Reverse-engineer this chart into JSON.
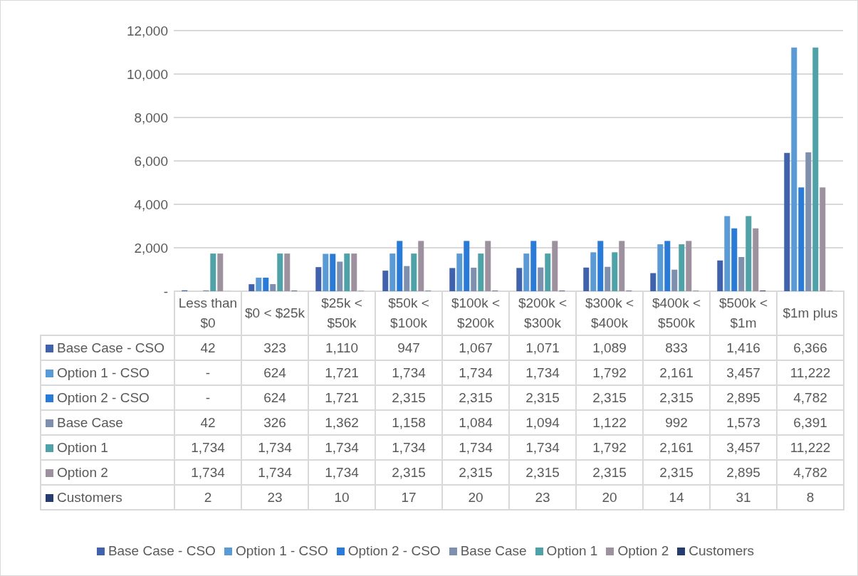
{
  "chart_data": {
    "type": "bar",
    "categories": [
      "Less than $0",
      "$0 < $25k",
      "$25k < $50k",
      "$50k < $100k",
      "$100k < $200k",
      "$200k < $300k",
      "$300k < $400k",
      "$400k < $500k",
      "$500k < $1m",
      "$1m plus"
    ],
    "series": [
      {
        "name": "Base Case - CSO",
        "color": "#4062ad",
        "values": [
          42,
          323,
          1110,
          947,
          1067,
          1071,
          1089,
          833,
          1416,
          6366
        ],
        "value_labels": [
          "42",
          "323",
          "1,110",
          "947",
          "1,067",
          "1,071",
          "1,089",
          "833",
          "1,416",
          "6,366"
        ]
      },
      {
        "name": "Option 1 - CSO",
        "color": "#5b9bd5",
        "values": [
          null,
          624,
          1721,
          1734,
          1734,
          1734,
          1792,
          2161,
          3457,
          11222
        ],
        "value_labels": [
          "-",
          "624",
          "1,721",
          "1,734",
          "1,734",
          "1,734",
          "1,792",
          "2,161",
          "3,457",
          "11,222"
        ]
      },
      {
        "name": "Option 2 - CSO",
        "color": "#2a7ad8",
        "values": [
          null,
          624,
          1721,
          2315,
          2315,
          2315,
          2315,
          2315,
          2895,
          4782
        ],
        "value_labels": [
          "-",
          "624",
          "1,721",
          "2,315",
          "2,315",
          "2,315",
          "2,315",
          "2,315",
          "2,895",
          "4,782"
        ]
      },
      {
        "name": "Base Case",
        "color": "#7f8fae",
        "values": [
          42,
          326,
          1362,
          1158,
          1084,
          1094,
          1122,
          992,
          1573,
          6391
        ],
        "value_labels": [
          "42",
          "326",
          "1,362",
          "1,158",
          "1,084",
          "1,094",
          "1,122",
          "992",
          "1,573",
          "6,391"
        ]
      },
      {
        "name": "Option 1",
        "color": "#4ea2a8",
        "values": [
          1734,
          1734,
          1734,
          1734,
          1734,
          1734,
          1792,
          2161,
          3457,
          11222
        ],
        "value_labels": [
          "1,734",
          "1,734",
          "1,734",
          "1,734",
          "1,734",
          "1,734",
          "1,792",
          "2,161",
          "3,457",
          "11,222"
        ]
      },
      {
        "name": "Option 2",
        "color": "#9d909f",
        "values": [
          1734,
          1734,
          1734,
          2315,
          2315,
          2315,
          2315,
          2315,
          2895,
          4782
        ],
        "value_labels": [
          "1,734",
          "1,734",
          "1,734",
          "2,315",
          "2,315",
          "2,315",
          "2,315",
          "2,315",
          "2,895",
          "4,782"
        ]
      },
      {
        "name": "Customers",
        "color": "#263b6e",
        "values": [
          2,
          23,
          10,
          17,
          20,
          23,
          20,
          14,
          31,
          8
        ],
        "value_labels": [
          "2",
          "23",
          "10",
          "17",
          "20",
          "23",
          "20",
          "14",
          "31",
          "8"
        ]
      }
    ],
    "ylim": [
      0,
      12000
    ],
    "yticks": [
      {
        "value": 0,
        "label": "-"
      },
      {
        "value": 2000,
        "label": "2,000"
      },
      {
        "value": 4000,
        "label": "4,000"
      },
      {
        "value": 6000,
        "label": "6,000"
      },
      {
        "value": 8000,
        "label": "8,000"
      },
      {
        "value": 10000,
        "label": "10,000"
      },
      {
        "value": 12000,
        "label": "12,000"
      }
    ],
    "grid": "y",
    "legend": "bottom"
  }
}
